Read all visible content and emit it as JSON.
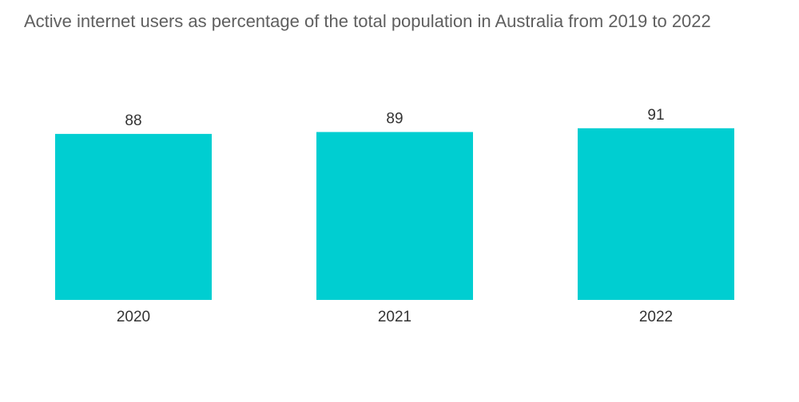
{
  "chart_data": {
    "type": "bar",
    "title": "Active internet users as percentage of the total population in Australia from 2019 to 2022",
    "categories": [
      "2020",
      "2021",
      "2022"
    ],
    "values": [
      88,
      89,
      91
    ],
    "data_labels": [
      "88",
      "89",
      "91"
    ],
    "xlabel": "",
    "ylabel": "",
    "grid": false,
    "legend": "none",
    "bar_color": "#00ced1"
  }
}
